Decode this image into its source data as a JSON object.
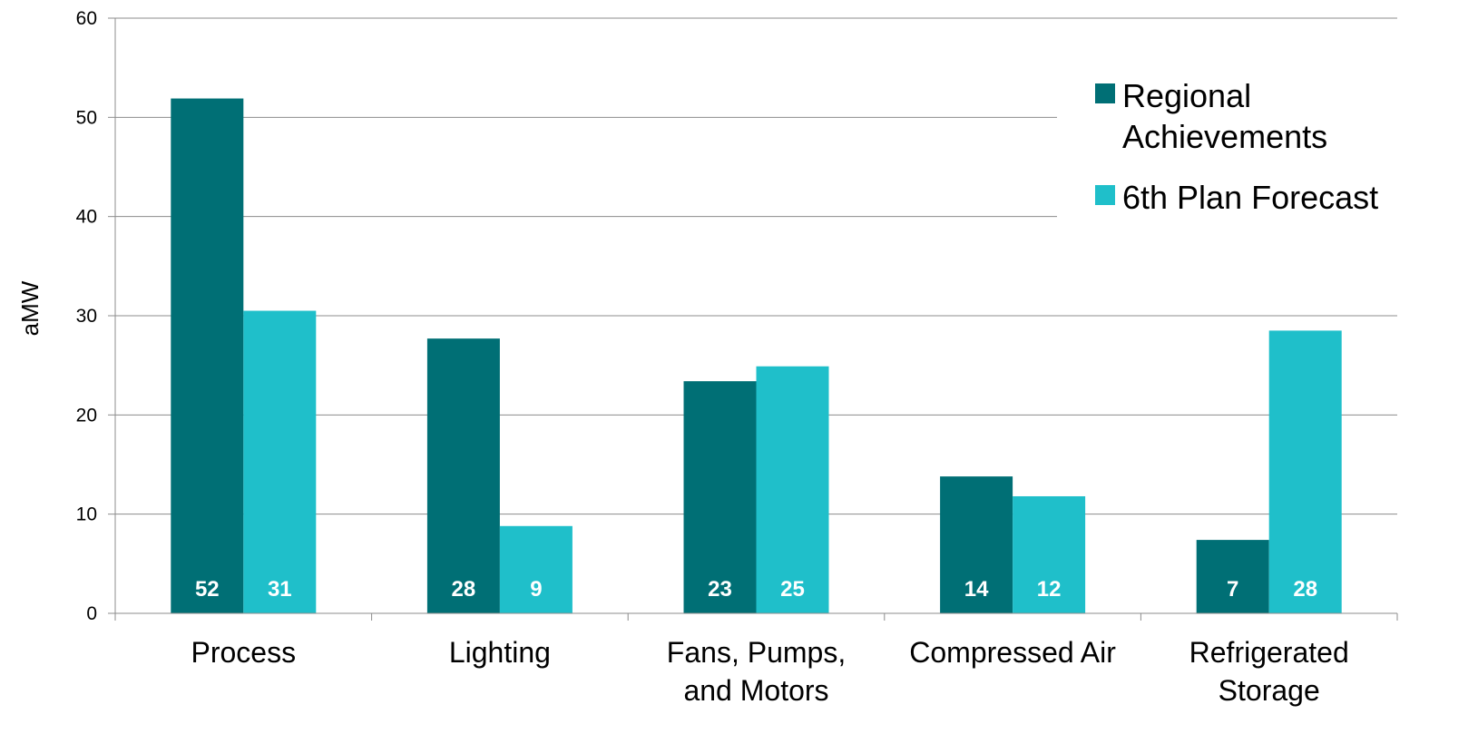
{
  "chart_data": {
    "type": "bar",
    "categories": [
      [
        "Process"
      ],
      [
        "Lighting"
      ],
      [
        "Fans, Pumps,",
        "and Motors"
      ],
      [
        "Compressed Air"
      ],
      [
        "Refrigerated",
        "Storage"
      ]
    ],
    "series": [
      {
        "name": "Regional Achievements",
        "legend_lines": [
          "Regional",
          "Achievements"
        ],
        "color": "#006f75",
        "values": [
          51.9,
          27.7,
          23.4,
          13.8,
          7.4
        ],
        "labels": [
          "52",
          "28",
          "23",
          "14",
          "7"
        ]
      },
      {
        "name": "6th Plan Forecast",
        "legend_lines": [
          "6th Plan Forecast"
        ],
        "color": "#1fbfca",
        "values": [
          30.5,
          8.8,
          24.9,
          11.8,
          28.5
        ],
        "labels": [
          "31",
          "9",
          "25",
          "12",
          "28"
        ]
      }
    ],
    "ylabel": "aMW",
    "ylim": [
      0,
      60
    ],
    "yticks": [
      "0",
      "10",
      "20",
      "30",
      "40",
      "50",
      "60"
    ],
    "grid": true,
    "legend_position": "top-right"
  }
}
